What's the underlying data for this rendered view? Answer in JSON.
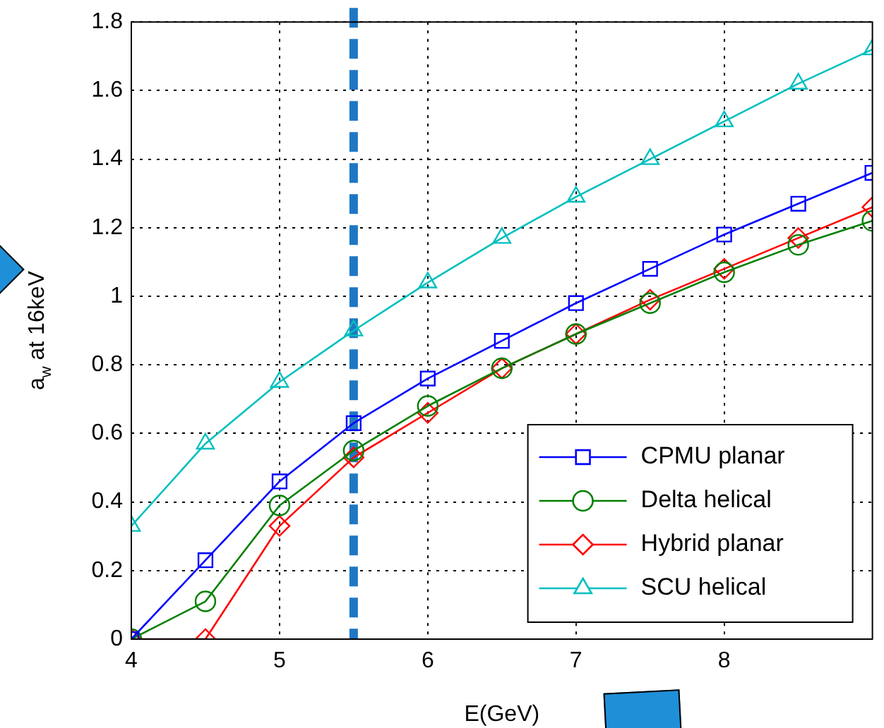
{
  "chart_data": {
    "type": "line",
    "xlabel": "E(GeV)",
    "ylabel": "a$_{w}$ at 16keV",
    "x": [
      4,
      4.5,
      5,
      5.5,
      6,
      6.5,
      7,
      7.5,
      8,
      8.5,
      9
    ],
    "xlim": [
      4,
      9
    ],
    "xticks": [
      4,
      5,
      6,
      7,
      8
    ],
    "ylim": [
      0,
      1.8
    ],
    "yticks": [
      0,
      0.2,
      0.4,
      0.6,
      0.8,
      1,
      1.2,
      1.4,
      1.6,
      1.8
    ],
    "grid": true,
    "legend": "bottom right",
    "line_style": "solid",
    "ref_lines": [
      {
        "axis": "x",
        "value": 5.5,
        "color": "#1f77c4",
        "line_style": "dashed"
      }
    ],
    "series": [
      {
        "name": "CPMU planar",
        "color": "#0000ff",
        "marker": "square",
        "values": [
          0,
          0.23,
          0.46,
          0.63,
          0.76,
          0.87,
          0.98,
          1.08,
          1.18,
          1.27,
          1.36
        ]
      },
      {
        "name": "Delta helical",
        "color": "#008000",
        "marker": "circle",
        "values": [
          0,
          0.11,
          0.39,
          0.55,
          0.68,
          0.79,
          0.89,
          0.98,
          1.07,
          1.15,
          1.22
        ]
      },
      {
        "name": "Hybrid planar",
        "color": "#ff0000",
        "marker": "diamond",
        "values": [
          0,
          0,
          0.33,
          0.53,
          0.66,
          0.79,
          0.89,
          0.99,
          1.08,
          1.17,
          1.26
        ]
      },
      {
        "name": "SCU helical",
        "color": "#00bfbf",
        "marker": "triangle",
        "values": [
          0.33,
          0.57,
          0.75,
          0.9,
          1.04,
          1.17,
          1.29,
          1.4,
          1.51,
          1.62,
          1.72
        ]
      }
    ]
  }
}
